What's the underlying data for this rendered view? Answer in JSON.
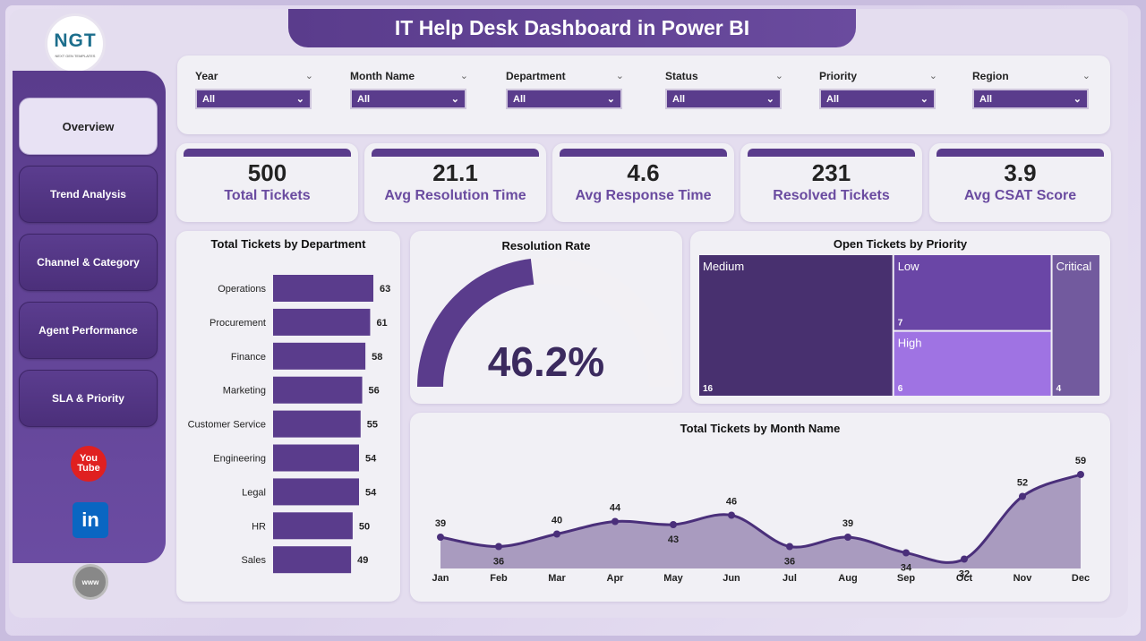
{
  "header": {
    "title": "IT Help Desk Dashboard in Power BI"
  },
  "logo": {
    "mark": "NGT",
    "subtitle": "NEXT GEN TEMPLATES"
  },
  "sidebar": {
    "items": [
      {
        "label": "Overview",
        "active": true
      },
      {
        "label": "Trend Analysis",
        "active": false
      },
      {
        "label": "Channel & Category",
        "active": false
      },
      {
        "label": "Agent Performance",
        "active": false
      },
      {
        "label": "SLA & Priority",
        "active": false
      }
    ],
    "social": [
      {
        "icon": "youtube-icon",
        "label": "You Tube"
      },
      {
        "icon": "linkedin-icon",
        "label": "in"
      },
      {
        "icon": "globe-icon",
        "label": "www"
      }
    ]
  },
  "filters": [
    {
      "label": "Year",
      "value": "All"
    },
    {
      "label": "Month Name",
      "value": "All"
    },
    {
      "label": "Department",
      "value": "All"
    },
    {
      "label": "Status",
      "value": "All"
    },
    {
      "label": "Priority",
      "value": "All"
    },
    {
      "label": "Region",
      "value": "All"
    }
  ],
  "kpis": [
    {
      "value": "500",
      "label": "Total Tickets"
    },
    {
      "value": "21.1",
      "label": "Avg Resolution Time"
    },
    {
      "value": "4.6",
      "label": "Avg Response Time"
    },
    {
      "value": "231",
      "label": "Resolved Tickets"
    },
    {
      "value": "3.9",
      "label": "Avg CSAT Score"
    }
  ],
  "colors": {
    "primary": "#5a3c8c",
    "accent": "#6a4ba0",
    "treemap_medium": "#48306f",
    "treemap_low": "#6a46a6",
    "treemap_high": "#9f73e3",
    "treemap_critical": "#725a9e",
    "gauge_track": "#f2f0f4",
    "area_fill": "#a99bbf"
  },
  "chart_data": [
    {
      "type": "bar",
      "orientation": "horizontal",
      "title": "Total Tickets by Department",
      "categories": [
        "Operations",
        "Procurement",
        "Finance",
        "Marketing",
        "Customer Service",
        "Engineering",
        "Legal",
        "HR",
        "Sales"
      ],
      "values": [
        63,
        61,
        58,
        56,
        55,
        54,
        54,
        50,
        49
      ]
    },
    {
      "type": "gauge",
      "title": "Resolution Rate",
      "value": 46.2,
      "display": "46.2%",
      "range": [
        0,
        100
      ]
    },
    {
      "type": "treemap",
      "title": "Open Tickets by Priority",
      "items": [
        {
          "label": "Medium",
          "value": 16
        },
        {
          "label": "Low",
          "value": 7
        },
        {
          "label": "High",
          "value": 6
        },
        {
          "label": "Critical",
          "value": 4
        }
      ]
    },
    {
      "type": "area",
      "title": "Total Tickets by Month Name",
      "categories": [
        "Jan",
        "Feb",
        "Mar",
        "Apr",
        "May",
        "Jun",
        "Jul",
        "Aug",
        "Sep",
        "Oct",
        "Nov",
        "Dec"
      ],
      "values": [
        39,
        36,
        40,
        44,
        43,
        46,
        36,
        39,
        34,
        32,
        52,
        59
      ]
    }
  ]
}
